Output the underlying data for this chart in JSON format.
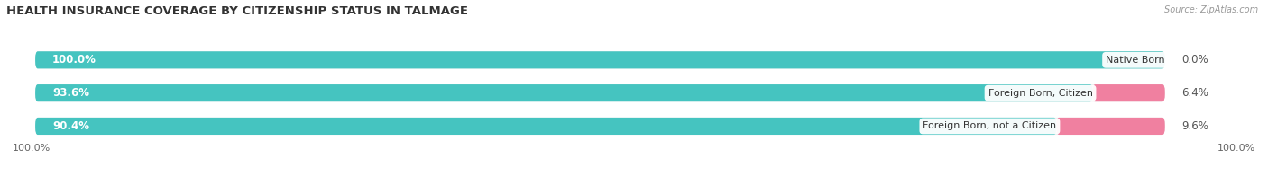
{
  "title": "HEALTH INSURANCE COVERAGE BY CITIZENSHIP STATUS IN TALMAGE",
  "source": "Source: ZipAtlas.com",
  "categories": [
    "Native Born",
    "Foreign Born, Citizen",
    "Foreign Born, not a Citizen"
  ],
  "with_coverage": [
    100.0,
    93.6,
    90.4
  ],
  "without_coverage": [
    0.0,
    6.4,
    9.6
  ],
  "color_with": "#45C4C0",
  "color_without": "#F080A0",
  "color_bg_bar": "#EBEBEB",
  "title_fontsize": 9.5,
  "label_fontsize": 8.5,
  "tick_fontsize": 8,
  "legend_fontsize": 8,
  "source_fontsize": 7,
  "x_left_label": "100.0%",
  "x_right_label": "100.0%"
}
